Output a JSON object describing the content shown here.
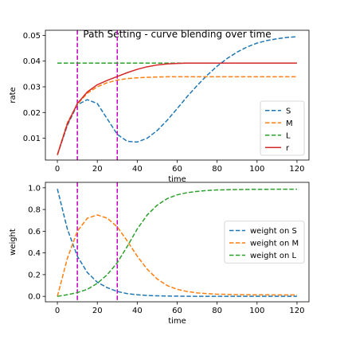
{
  "chart_data": [
    {
      "type": "line",
      "title": "Path Setting - curve blending over time",
      "xlabel": "time",
      "ylabel": "rate",
      "xlim": [
        -6,
        126
      ],
      "ylim": [
        0.0015,
        0.052
      ],
      "xticks": [
        0,
        20,
        40,
        60,
        80,
        100,
        120
      ],
      "yticks": [
        0.01,
        0.02,
        0.03,
        0.04,
        0.05
      ],
      "ytick_labels": [
        "0.01",
        "0.02",
        "0.03",
        "0.04",
        "0.05"
      ],
      "vlines": [
        10,
        30
      ],
      "vline_color": "#bf00bf",
      "legend_position": "lower right",
      "grid": false,
      "x": [
        0,
        5,
        10,
        15,
        20,
        25,
        30,
        35,
        40,
        45,
        50,
        55,
        60,
        65,
        70,
        75,
        80,
        85,
        90,
        95,
        100,
        105,
        110,
        115,
        120
      ],
      "series": [
        {
          "name": "S",
          "style": "dashed",
          "color": "#1f77b4",
          "values": [
            0.0035,
            0.015,
            0.023,
            0.025,
            0.0235,
            0.0175,
            0.0115,
            0.0088,
            0.0085,
            0.01,
            0.013,
            0.017,
            0.0215,
            0.0262,
            0.0305,
            0.0345,
            0.038,
            0.041,
            0.0435,
            0.0455,
            0.047,
            0.048,
            0.0487,
            0.0492,
            0.0495
          ]
        },
        {
          "name": "M",
          "style": "dashed",
          "color": "#ff7f0e",
          "values": [
            0.0035,
            0.016,
            0.0232,
            0.0275,
            0.03,
            0.0316,
            0.0326,
            0.0332,
            0.0335,
            0.0337,
            0.0338,
            0.0339,
            0.0339,
            0.0339,
            0.0339,
            0.0339,
            0.0339,
            0.0339,
            0.0339,
            0.0339,
            0.0339,
            0.0339,
            0.0339,
            0.0339,
            0.0339
          ]
        },
        {
          "name": "L",
          "style": "dashed",
          "color": "#2ca02c",
          "values": [
            0.0392,
            0.0392,
            0.0392,
            0.0392,
            0.0392,
            0.0392,
            0.0392,
            0.0392,
            0.0392,
            0.0392,
            0.0392,
            0.0392,
            0.0392,
            0.0392,
            0.0392,
            0.0392,
            0.0392,
            0.0392,
            0.0392,
            0.0392,
            0.0392,
            0.0392,
            0.0392,
            0.0392,
            0.0392
          ]
        },
        {
          "name": "r",
          "style": "solid",
          "color": "#d62728",
          "values": [
            0.0035,
            0.0155,
            0.0235,
            0.028,
            0.0308,
            0.0325,
            0.034,
            0.0355,
            0.0368,
            0.0378,
            0.0385,
            0.0389,
            0.0391,
            0.0392,
            0.0392,
            0.0392,
            0.0392,
            0.0392,
            0.0392,
            0.0392,
            0.0392,
            0.0392,
            0.0392,
            0.0392,
            0.0392
          ]
        }
      ]
    },
    {
      "type": "line",
      "title": "",
      "xlabel": "time",
      "ylabel": "weight",
      "xlim": [
        -6,
        126
      ],
      "ylim": [
        -0.05,
        1.05
      ],
      "xticks": [
        0,
        20,
        40,
        60,
        80,
        100,
        120
      ],
      "yticks": [
        0.0,
        0.2,
        0.4,
        0.6,
        0.8,
        1.0
      ],
      "ytick_labels": [
        "0.0",
        "0.2",
        "0.4",
        "0.6",
        "0.8",
        "1.0"
      ],
      "vlines": [
        10,
        30
      ],
      "vline_color": "#bf00bf",
      "legend_position": "center right",
      "grid": false,
      "x": [
        0,
        5,
        10,
        15,
        20,
        25,
        30,
        35,
        40,
        45,
        50,
        55,
        60,
        65,
        70,
        75,
        80,
        85,
        90,
        95,
        100,
        105,
        110,
        115,
        120
      ],
      "series": [
        {
          "name": "weight on S",
          "style": "dashed",
          "color": "#1f77b4",
          "values": [
            0.99,
            0.62,
            0.37,
            0.22,
            0.13,
            0.08,
            0.045,
            0.025,
            0.015,
            0.008,
            0.005,
            0.003,
            0.002,
            0.001,
            0.0,
            0.0,
            0.0,
            0.0,
            0.0,
            0.0,
            0.0,
            0.0,
            0.0,
            0.0,
            0.0
          ]
        },
        {
          "name": "weight on M",
          "style": "dashed",
          "color": "#ff7f0e",
          "values": [
            0.0,
            0.35,
            0.6,
            0.72,
            0.75,
            0.72,
            0.64,
            0.51,
            0.37,
            0.25,
            0.16,
            0.1,
            0.065,
            0.045,
            0.032,
            0.025,
            0.02,
            0.018,
            0.016,
            0.015,
            0.014,
            0.014,
            0.013,
            0.013,
            0.013
          ]
        },
        {
          "name": "weight on L",
          "style": "dashed",
          "color": "#2ca02c",
          "values": [
            0.0,
            0.015,
            0.035,
            0.065,
            0.12,
            0.2,
            0.31,
            0.46,
            0.62,
            0.75,
            0.84,
            0.9,
            0.935,
            0.955,
            0.967,
            0.975,
            0.98,
            0.982,
            0.984,
            0.985,
            0.986,
            0.986,
            0.987,
            0.987,
            0.987
          ]
        }
      ]
    }
  ]
}
